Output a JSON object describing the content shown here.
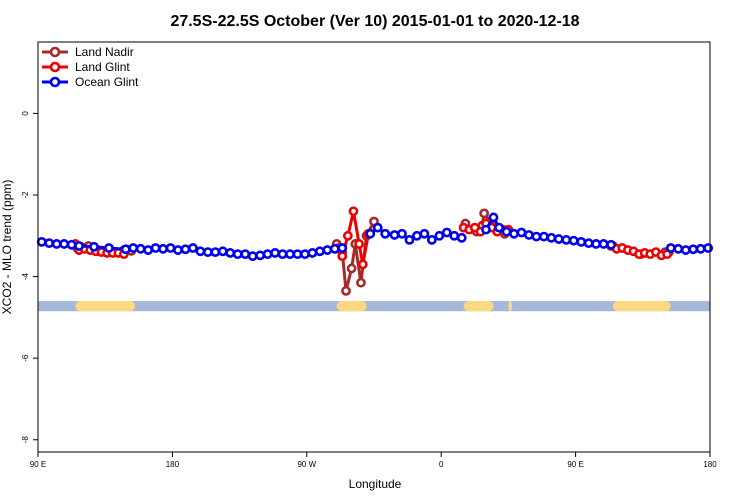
{
  "chart_data": {
    "type": "line",
    "title": "27.5S-22.5S October (Ver 10)   2015-01-01 to 2020-12-18",
    "xlabel": "Longitude",
    "ylabel": "XCO2 - MLO trend (ppm)",
    "xlim": [
      0,
      360
    ],
    "ylim": [
      -8.3,
      1.75
    ],
    "x_ticks": [
      {
        "value": 0,
        "label": "90 E"
      },
      {
        "value": 72,
        "label": "180"
      },
      {
        "value": 144,
        "label": "90 W"
      },
      {
        "value": 216,
        "label": "0"
      },
      {
        "value": 288,
        "label": "90 E"
      },
      {
        "value": 360,
        "label": "180"
      }
    ],
    "y_ticks": [
      {
        "value": 0,
        "label": "0"
      },
      {
        "value": -2,
        "label": "-2"
      },
      {
        "value": -4,
        "label": "-4"
      },
      {
        "value": -6,
        "label": "-6"
      },
      {
        "value": -8,
        "label": "-8"
      }
    ],
    "legend_position": "top-left",
    "land_strip": {
      "y_range": [
        -4.85,
        -4.6
      ],
      "ocean_color": "#a4b9d9",
      "land_color": "#fcd980",
      "land_segments": [
        [
          20,
          52
        ],
        [
          160,
          176
        ],
        [
          228,
          244
        ],
        [
          252,
          254
        ],
        [
          308,
          339
        ]
      ]
    },
    "series": [
      {
        "name": "Land Nadir",
        "color": "#a52a2a",
        "segments": [
          [
            [
              21,
              -3.3
            ],
            [
              23,
              -3.27
            ],
            [
              27,
              -3.25
            ],
            [
              46,
              -3.35
            ],
            [
              50,
              -3.37
            ]
          ],
          [
            [
              160,
              -3.2
            ],
            [
              163,
              -3.4
            ],
            [
              165,
              -4.35
            ],
            [
              168,
              -3.8
            ],
            [
              170,
              -3.2
            ],
            [
              173,
              -4.15
            ],
            [
              176,
              -3.0
            ],
            [
              180,
              -2.65
            ]
          ],
          [
            [
              229,
              -2.7
            ],
            [
              235,
              -2.9
            ],
            [
              238,
              -2.75
            ],
            [
              239,
              -2.45
            ],
            [
              242,
              -2.65
            ],
            [
              246,
              -2.8
            ],
            [
              250,
              -2.95
            ]
          ],
          [
            [
              307,
              -3.25
            ],
            [
              313,
              -3.3
            ],
            [
              323,
              -3.45
            ],
            [
              336,
              -3.4
            ],
            [
              338,
              -3.4
            ]
          ]
        ]
      },
      {
        "name": "Land Glint",
        "color": "#ee0000",
        "segments": [
          [
            [
              20,
              -3.2
            ],
            [
              22,
              -3.35
            ],
            [
              25,
              -3.32
            ],
            [
              28,
              -3.35
            ],
            [
              31,
              -3.38
            ],
            [
              34,
              -3.4
            ],
            [
              37,
              -3.42
            ],
            [
              40,
              -3.42
            ],
            [
              43,
              -3.42
            ],
            [
              46,
              -3.45
            ]
          ],
          [
            [
              161,
              -3.3
            ],
            [
              163,
              -3.5
            ],
            [
              166,
              -3.0
            ],
            [
              169,
              -2.4
            ],
            [
              172,
              -3.2
            ],
            [
              174,
              -3.7
            ],
            [
              177,
              -2.95
            ]
          ],
          [
            [
              228,
              -2.8
            ],
            [
              231,
              -2.85
            ],
            [
              234,
              -2.8
            ],
            [
              237,
              -2.9
            ],
            [
              240,
              -2.7
            ],
            [
              243,
              -2.8
            ],
            [
              246,
              -2.9
            ],
            [
              249,
              -2.85
            ],
            [
              252,
              -2.85
            ]
          ],
          [
            [
              308,
              -3.25
            ],
            [
              310,
              -3.32
            ],
            [
              313,
              -3.3
            ],
            [
              316,
              -3.35
            ],
            [
              319,
              -3.38
            ],
            [
              322,
              -3.45
            ],
            [
              325,
              -3.42
            ],
            [
              328,
              -3.45
            ],
            [
              331,
              -3.4
            ],
            [
              334,
              -3.48
            ],
            [
              337,
              -3.45
            ]
          ]
        ]
      },
      {
        "name": "Ocean Glint",
        "color": "#0000ee",
        "segments": [
          [
            [
              2,
              -3.15
            ],
            [
              6,
              -3.18
            ],
            [
              10,
              -3.2
            ],
            [
              14,
              -3.2
            ],
            [
              18,
              -3.22
            ],
            [
              22,
              -3.25
            ],
            [
              30,
              -3.27
            ],
            [
              38,
              -3.3
            ],
            [
              47,
              -3.33
            ],
            [
              51,
              -3.3
            ],
            [
              55,
              -3.32
            ],
            [
              59,
              -3.35
            ],
            [
              63,
              -3.3
            ],
            [
              67,
              -3.32
            ],
            [
              71,
              -3.3
            ],
            [
              75,
              -3.35
            ],
            [
              79,
              -3.33
            ],
            [
              83,
              -3.3
            ],
            [
              87,
              -3.38
            ],
            [
              91,
              -3.4
            ],
            [
              95,
              -3.4
            ],
            [
              99,
              -3.38
            ],
            [
              103,
              -3.42
            ],
            [
              107,
              -3.45
            ],
            [
              111,
              -3.45
            ],
            [
              115,
              -3.5
            ],
            [
              119,
              -3.48
            ],
            [
              123,
              -3.45
            ],
            [
              127,
              -3.42
            ],
            [
              131,
              -3.45
            ],
            [
              135,
              -3.45
            ],
            [
              139,
              -3.45
            ],
            [
              143,
              -3.45
            ],
            [
              147,
              -3.42
            ],
            [
              151,
              -3.38
            ],
            [
              155,
              -3.35
            ],
            [
              159,
              -3.32
            ],
            [
              163,
              -3.3
            ]
          ],
          [
            [
              178,
              -2.95
            ],
            [
              182,
              -2.8
            ],
            [
              186,
              -2.95
            ],
            [
              191,
              -2.98
            ],
            [
              195,
              -2.95
            ],
            [
              199,
              -3.1
            ],
            [
              203,
              -3.0
            ],
            [
              207,
              -2.95
            ],
            [
              211,
              -3.1
            ],
            [
              215,
              -3.0
            ],
            [
              219,
              -2.92
            ],
            [
              223,
              -3.0
            ],
            [
              227,
              -3.05
            ]
          ],
          [
            [
              240,
              -2.85
            ],
            [
              244,
              -2.55
            ],
            [
              247,
              -2.8
            ],
            [
              251,
              -2.9
            ],
            [
              255,
              -2.95
            ],
            [
              259,
              -2.92
            ],
            [
              263,
              -2.98
            ],
            [
              267,
              -3.02
            ],
            [
              271,
              -3.02
            ],
            [
              275,
              -3.05
            ],
            [
              279,
              -3.08
            ],
            [
              283,
              -3.1
            ],
            [
              287,
              -3.12
            ],
            [
              291,
              -3.15
            ],
            [
              295,
              -3.18
            ],
            [
              299,
              -3.2
            ],
            [
              303,
              -3.2
            ],
            [
              307,
              -3.22
            ]
          ],
          [
            [
              339,
              -3.3
            ],
            [
              343,
              -3.32
            ],
            [
              347,
              -3.35
            ],
            [
              351,
              -3.33
            ],
            [
              355,
              -3.32
            ],
            [
              359,
              -3.3
            ]
          ]
        ]
      }
    ]
  }
}
